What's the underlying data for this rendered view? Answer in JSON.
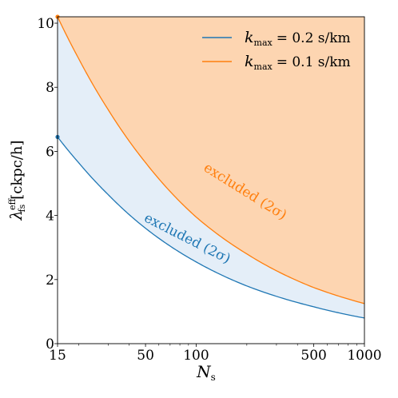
{
  "chart_data": {
    "type": "area",
    "xlabel": "N_s",
    "ylabel": "λ_fs^eff [ckpc/h]",
    "xscale": "log",
    "xlim": [
      15,
      1000
    ],
    "ylim": [
      0,
      10.2
    ],
    "xticks": [
      15,
      50,
      100,
      500,
      1000
    ],
    "xtick_labels": [
      "15",
      "50",
      "100",
      "500",
      "1000"
    ],
    "yticks": [
      0,
      2,
      4,
      6,
      8,
      10
    ],
    "ytick_labels": [
      "0",
      "2",
      "4",
      "6",
      "8",
      "10"
    ],
    "legend_placement": "top-right",
    "grid": false,
    "series": [
      {
        "name": "k_max = 0.2 s/km",
        "legend_label": "= 0.2 s/km",
        "color": "#1f77b4",
        "fill_color": "#e4eef8",
        "x": [
          15,
          20,
          30,
          50,
          100,
          200,
          500,
          1000
        ],
        "y": [
          6.45,
          5.65,
          4.65,
          3.6,
          2.55,
          1.8,
          1.15,
          0.8
        ],
        "annotation": "excluded (2σ)"
      },
      {
        "name": "k_max = 0.1 s/km",
        "legend_label": "= 0.1 s/km",
        "color": "#ff7f0e",
        "fill_color": "#fdd5b1",
        "x": [
          15,
          20,
          30,
          50,
          100,
          200,
          500,
          1000
        ],
        "y": [
          10.2,
          8.9,
          7.3,
          5.65,
          3.95,
          2.8,
          1.75,
          1.25
        ],
        "annotation": "excluded (2σ)"
      }
    ]
  }
}
